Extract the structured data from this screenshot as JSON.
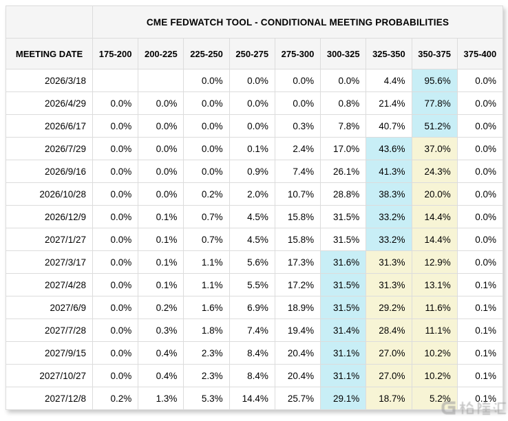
{
  "colors": {
    "header_bg": "#f5f5f5",
    "row_bg": "#ffffff",
    "border": "#dcdcdc",
    "outer_border": "#cfcfcf",
    "text": "#000000",
    "highlight_blue": "#c8eef6",
    "highlight_yellow": "#f7f4d5",
    "watermark": "#9b9b9b"
  },
  "watermark": {
    "logo": "gelonghui-g-logo",
    "text": "格隆汇"
  },
  "chart_data": {
    "type": "table",
    "title": "CME FEDWATCH TOOL - CONDITIONAL MEETING PROBABILITIES",
    "columns": [
      "MEETING DATE",
      "175-200",
      "200-225",
      "225-250",
      "250-275",
      "275-300",
      "300-325",
      "325-350",
      "350-375",
      "375-400"
    ],
    "rows": [
      {
        "cells": [
          "2026/3/18",
          "",
          "",
          "0.0%",
          "0.0%",
          "0.0%",
          "0.0%",
          "4.4%",
          "95.6%",
          "0.0%"
        ],
        "hl": [
          "",
          "",
          "",
          "",
          "",
          "",
          "",
          "",
          "b",
          ""
        ]
      },
      {
        "cells": [
          "2026/4/29",
          "0.0%",
          "0.0%",
          "0.0%",
          "0.0%",
          "0.0%",
          "0.8%",
          "21.4%",
          "77.8%",
          "0.0%"
        ],
        "hl": [
          "",
          "",
          "",
          "",
          "",
          "",
          "",
          "",
          "b",
          ""
        ]
      },
      {
        "cells": [
          "2026/6/17",
          "0.0%",
          "0.0%",
          "0.0%",
          "0.0%",
          "0.3%",
          "7.8%",
          "40.7%",
          "51.2%",
          "0.0%"
        ],
        "hl": [
          "",
          "",
          "",
          "",
          "",
          "",
          "",
          "",
          "b",
          ""
        ]
      },
      {
        "cells": [
          "2026/7/29",
          "0.0%",
          "0.0%",
          "0.0%",
          "0.1%",
          "2.4%",
          "17.0%",
          "43.6%",
          "37.0%",
          "0.0%"
        ],
        "hl": [
          "",
          "",
          "",
          "",
          "",
          "",
          "",
          "b",
          "y",
          ""
        ]
      },
      {
        "cells": [
          "2026/9/16",
          "0.0%",
          "0.0%",
          "0.0%",
          "0.9%",
          "7.4%",
          "26.1%",
          "41.3%",
          "24.3%",
          "0.0%"
        ],
        "hl": [
          "",
          "",
          "",
          "",
          "",
          "",
          "",
          "b",
          "y",
          ""
        ]
      },
      {
        "cells": [
          "2026/10/28",
          "0.0%",
          "0.0%",
          "0.2%",
          "2.0%",
          "10.7%",
          "28.8%",
          "38.3%",
          "20.0%",
          "0.0%"
        ],
        "hl": [
          "",
          "",
          "",
          "",
          "",
          "",
          "",
          "b",
          "y",
          ""
        ]
      },
      {
        "cells": [
          "2026/12/9",
          "0.0%",
          "0.1%",
          "0.7%",
          "4.5%",
          "15.8%",
          "31.5%",
          "33.2%",
          "14.4%",
          "0.0%"
        ],
        "hl": [
          "",
          "",
          "",
          "",
          "",
          "",
          "",
          "b",
          "y",
          ""
        ]
      },
      {
        "cells": [
          "2027/1/27",
          "0.0%",
          "0.1%",
          "0.7%",
          "4.5%",
          "15.8%",
          "31.5%",
          "33.2%",
          "14.4%",
          "0.0%"
        ],
        "hl": [
          "",
          "",
          "",
          "",
          "",
          "",
          "",
          "b",
          "y",
          ""
        ]
      },
      {
        "cells": [
          "2027/3/17",
          "0.0%",
          "0.1%",
          "1.1%",
          "5.6%",
          "17.3%",
          "31.6%",
          "31.3%",
          "12.9%",
          "0.0%"
        ],
        "hl": [
          "",
          "",
          "",
          "",
          "",
          "",
          "b",
          "y",
          "y",
          ""
        ]
      },
      {
        "cells": [
          "2027/4/28",
          "0.0%",
          "0.1%",
          "1.1%",
          "5.5%",
          "17.2%",
          "31.5%",
          "31.3%",
          "13.1%",
          "0.1%"
        ],
        "hl": [
          "",
          "",
          "",
          "",
          "",
          "",
          "b",
          "y",
          "y",
          ""
        ]
      },
      {
        "cells": [
          "2027/6/9",
          "0.0%",
          "0.2%",
          "1.6%",
          "6.9%",
          "18.9%",
          "31.5%",
          "29.2%",
          "11.6%",
          "0.1%"
        ],
        "hl": [
          "",
          "",
          "",
          "",
          "",
          "",
          "b",
          "y",
          "y",
          ""
        ]
      },
      {
        "cells": [
          "2027/7/28",
          "0.0%",
          "0.3%",
          "1.8%",
          "7.4%",
          "19.4%",
          "31.4%",
          "28.4%",
          "11.1%",
          "0.1%"
        ],
        "hl": [
          "",
          "",
          "",
          "",
          "",
          "",
          "b",
          "y",
          "y",
          ""
        ]
      },
      {
        "cells": [
          "2027/9/15",
          "0.0%",
          "0.4%",
          "2.3%",
          "8.4%",
          "20.4%",
          "31.1%",
          "27.0%",
          "10.2%",
          "0.1%"
        ],
        "hl": [
          "",
          "",
          "",
          "",
          "",
          "",
          "b",
          "y",
          "y",
          ""
        ]
      },
      {
        "cells": [
          "2027/10/27",
          "0.0%",
          "0.4%",
          "2.3%",
          "8.4%",
          "20.4%",
          "31.1%",
          "27.0%",
          "10.2%",
          "0.1%"
        ],
        "hl": [
          "",
          "",
          "",
          "",
          "",
          "",
          "b",
          "y",
          "y",
          ""
        ]
      },
      {
        "cells": [
          "2027/12/8",
          "0.2%",
          "1.3%",
          "5.3%",
          "14.4%",
          "25.7%",
          "29.1%",
          "18.7%",
          "5.2%",
          "0.1%"
        ],
        "hl": [
          "",
          "",
          "",
          "",
          "",
          "",
          "b",
          "y",
          "y",
          ""
        ]
      }
    ]
  }
}
